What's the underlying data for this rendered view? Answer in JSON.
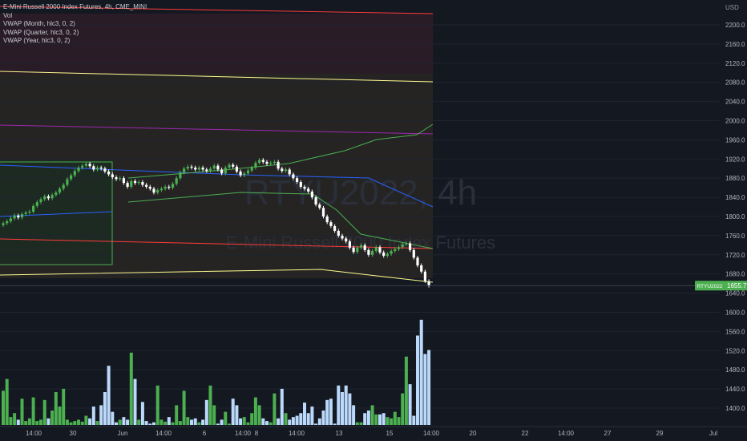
{
  "header": {
    "symbol_title": "E-Mini Russell 2000 Index Futures, 4h, CME_MINI",
    "indicators": [
      "Vol",
      "VWAP (Month, hlc3, 0, 2)",
      "VWAP (Quarter, hlc3, 0, 2)",
      "VWAP (Year, hlc3, 0, 2)"
    ]
  },
  "watermark": {
    "ticker": "RTYU2022, 4h",
    "name": "E-Mini Russell 2000 Index Futures"
  },
  "price_axis": {
    "currency": "USD",
    "ticks": [
      "2200.0",
      "2160.0",
      "2120.0",
      "2080.0",
      "2040.0",
      "2000.0",
      "1960.0",
      "1920.0",
      "1880.0",
      "1840.0",
      "1800.0",
      "1760.0",
      "1720.0",
      "1680.0",
      "1640.0",
      "1600.0",
      "1560.0",
      "1520.0",
      "1480.0",
      "1440.0",
      "1400.0"
    ],
    "last_price_symbol": "RTYU2022",
    "last_price": "1655.7"
  },
  "time_axis": {
    "ticks": [
      "14:00",
      "30",
      "Jun",
      "14:00",
      "6",
      "14:00",
      "8",
      "14:00",
      "13",
      "15",
      "14:00",
      "20",
      "22",
      "14:00",
      "27",
      "29",
      "Jul"
    ]
  },
  "colors": {
    "up": "#4caf50",
    "down": "#ffffff",
    "vol_up": "#4caf50",
    "vol_down": "#bbd9fb",
    "last_price": "#4caf50",
    "month_vwap_band": "#4caf50",
    "quarter_vwap": "#2962ff",
    "quarter_band_upper": "#ff9800",
    "year_vwap_upper": "#ff3b3b",
    "year_vwap_mid": "#9c27b0",
    "year_vwap_lower": "#fffb8f"
  },
  "chart_data": {
    "type": "candlestick",
    "timeframe": "4h",
    "ylim": [
      1620,
      2220
    ],
    "last_price": 1655.7,
    "ohlc_close": [
      1786,
      1790,
      1796,
      1802,
      1798,
      1805,
      1808,
      1810,
      1822,
      1830,
      1836,
      1842,
      1838,
      1845,
      1850,
      1858,
      1866,
      1878,
      1886,
      1895,
      1902,
      1906,
      1910,
      1905,
      1898,
      1902,
      1900,
      1894,
      1888,
      1882,
      1878,
      1880,
      1870,
      1862,
      1874,
      1870,
      1872,
      1866,
      1862,
      1858,
      1850,
      1855,
      1858,
      1862,
      1860,
      1868,
      1880,
      1892,
      1900,
      1904,
      1902,
      1898,
      1902,
      1898,
      1895,
      1900,
      1906,
      1898,
      1890,
      1902,
      1908,
      1904,
      1894,
      1886,
      1890,
      1896,
      1902,
      1912,
      1918,
      1914,
      1910,
      1912,
      1914,
      1900,
      1895,
      1898,
      1888,
      1880,
      1872,
      1862,
      1858,
      1852,
      1840,
      1825,
      1818,
      1800,
      1788,
      1780,
      1770,
      1760,
      1754,
      1748,
      1735,
      1726,
      1735,
      1740,
      1730,
      1720,
      1728,
      1736,
      1725,
      1718,
      1722,
      1728,
      1732,
      1736,
      1742,
      1744,
      1730,
      1714,
      1698,
      1685,
      1665,
      1655.7
    ],
    "volume": [
      52,
      70,
      12,
      18,
      8,
      40,
      6,
      10,
      42,
      6,
      8,
      38,
      10,
      22,
      50,
      28,
      55,
      8,
      4,
      6,
      8,
      5,
      14,
      10,
      28,
      6,
      30,
      50,
      90,
      20,
      4,
      8,
      12,
      8,
      110,
      70,
      8,
      35,
      6,
      2,
      4,
      60,
      8,
      5,
      12,
      4,
      30,
      6,
      52,
      12,
      8,
      10,
      4,
      8,
      38,
      60,
      30,
      2,
      8,
      20,
      2,
      40,
      30,
      10,
      12,
      4,
      18,
      42,
      30,
      10,
      6,
      4,
      48,
      10,
      55,
      18,
      8,
      12,
      14,
      18,
      34,
      18,
      28,
      2,
      10,
      22,
      38,
      40,
      2,
      60,
      50,
      60,
      48,
      30,
      4,
      4,
      18,
      22,
      30,
      16,
      16,
      18,
      12,
      10,
      20,
      12,
      48,
      104,
      62,
      14,
      136,
      160,
      108,
      114
    ]
  }
}
